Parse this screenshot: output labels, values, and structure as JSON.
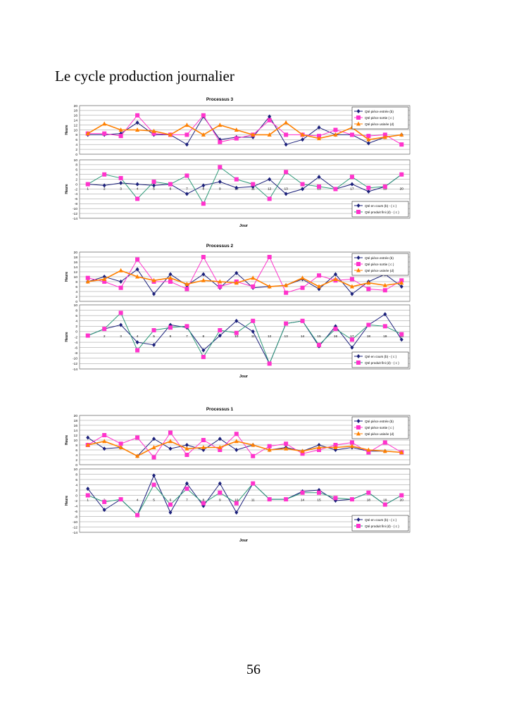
{
  "document": {
    "title": "Le cycle production journalier",
    "page_number": "56"
  },
  "colors": {
    "navy": "#1a1f7a",
    "magenta": "#ff33cc",
    "orange": "#ff8000",
    "teal": "#2e9a78",
    "grid": "#000000"
  },
  "chart_data": [
    {
      "type": "line",
      "title": "Processus 3",
      "top": {
        "ylabel": "Heure",
        "ylim": [
          0,
          20
        ],
        "yticks": [
          0,
          2,
          4,
          6,
          8,
          10,
          12,
          14,
          16,
          18,
          20
        ],
        "x": [
          1,
          2,
          3,
          4,
          5,
          6,
          7,
          8,
          9,
          10,
          11,
          12,
          13,
          14,
          15,
          16,
          17,
          18,
          19,
          20
        ],
        "legend": [
          "Qté pièce entrée (b)",
          "Qté pièce sortie ( c )",
          "Qté pièce usinée (d)"
        ],
        "series": [
          {
            "name": "Qté pièce entrée (b)",
            "values": [
              8,
              8,
              8.5,
              13,
              8,
              8,
              4,
              15.5,
              6,
              7,
              7,
              15.5,
              4,
              6,
              11,
              8,
              8,
              4.5,
              7,
              8
            ]
          },
          {
            "name": "Qté pièce sortie ( c )",
            "values": [
              8.5,
              8.5,
              7.5,
              16,
              8.5,
              8,
              8,
              16,
              5,
              6.5,
              8,
              14,
              8,
              8,
              7.5,
              10,
              8,
              7.5,
              8,
              4
            ]
          },
          {
            "name": "Qté pièce usinée (d)",
            "values": [
              8.5,
              12.5,
              10,
              10,
              9.5,
              8,
              12,
              8,
              12,
              10,
              8,
              8,
              13,
              8,
              6.5,
              8,
              11,
              6,
              7,
              8
            ]
          }
        ]
      },
      "bottom": {
        "ylim": [
          -14,
          10
        ],
        "yticks": [
          -14,
          -12,
          -10,
          -8,
          -6,
          -4,
          -2,
          0,
          2,
          4,
          6,
          8,
          10
        ],
        "xlabel": "Jour",
        "x": [
          1,
          2,
          3,
          4,
          5,
          6,
          7,
          8,
          9,
          10,
          11,
          12,
          13,
          14,
          15,
          16,
          17,
          18,
          19,
          20
        ],
        "legend": [
          "Qté en cours (b) - ( c )",
          "Qté produit fini (d) - ( c )"
        ],
        "series": [
          {
            "name": "Qté en cours (b) - ( c )",
            "values": [
              0,
              -0.5,
              0.5,
              0,
              -0.5,
              0,
              -4,
              -0.5,
              1,
              -1.5,
              -1,
              2,
              -4,
              -2,
              3,
              -2,
              0,
              -3,
              -1,
              4
            ]
          },
          {
            "name": "Qté produit fini (d) - ( c )",
            "values": [
              0,
              4,
              2.5,
              -6,
              1,
              0,
              3.5,
              -8,
              7,
              2,
              0,
              -6,
              5,
              0,
              -1,
              -2,
              3,
              -1.5,
              -1,
              4
            ]
          }
        ]
      }
    },
    {
      "type": "line",
      "title": "Processus 2",
      "top": {
        "ylabel": "Heure",
        "ylim": [
          0,
          20
        ],
        "yticks": [
          0,
          2,
          4,
          6,
          8,
          10,
          12,
          14,
          16,
          18,
          20
        ],
        "x": [
          1,
          2,
          3,
          4,
          5,
          6,
          7,
          8,
          9,
          10,
          11,
          12,
          13,
          14,
          15,
          16,
          17,
          18,
          19,
          20
        ],
        "legend": [
          "Qté pièce entrée (b)",
          "Qté pièce sortie ( c )",
          "Qté pièce usinée (d)"
        ],
        "series": [
          {
            "name": "Qté pièce entrée (b)",
            "values": [
              8,
              10,
              8,
              13,
              3,
              11,
              6.5,
              11,
              5.5,
              11.5,
              5.5,
              6,
              6.5,
              9,
              5,
              11,
              3,
              8,
              11,
              6
            ]
          },
          {
            "name": "Qté pièce sortie ( c )",
            "values": [
              9.5,
              8,
              5.5,
              17,
              8,
              8,
              5,
              18,
              6,
              8,
              6,
              18,
              3.5,
              5.5,
              10.5,
              8.5,
              9,
              5,
              4.5,
              8.5
            ]
          },
          {
            "name": "Qté pièce usinée (d)",
            "values": [
              8,
              9,
              12.5,
              10,
              8.5,
              9.5,
              7,
              8.5,
              8,
              7.5,
              9.5,
              6,
              6.5,
              9.5,
              6,
              9,
              6,
              7.5,
              6.5,
              7.5
            ]
          }
        ]
      },
      "bottom": {
        "ylim": [
          -14,
          10
        ],
        "yticks": [
          -14,
          -12,
          -10,
          -8,
          -6,
          -4,
          -2,
          0,
          2,
          4,
          6,
          8,
          10
        ],
        "xlabel": "Jour",
        "x": [
          1,
          2,
          3,
          4,
          5,
          6,
          7,
          8,
          9,
          10,
          11,
          12,
          13,
          14,
          15,
          16,
          17,
          18,
          19,
          20
        ],
        "legend": [
          "Qté en cours (b) - ( c )",
          "Qté produit fini (d) - ( c )"
        ],
        "series": [
          {
            "name": "Qté en cours (b) - ( c )",
            "values": [
              -1.5,
              1,
              2.5,
              -4,
              -5,
              2.5,
              1.5,
              -7,
              -1.5,
              4,
              0,
              -12,
              3,
              4,
              -5.5,
              2,
              -6,
              2.5,
              6.5,
              -3
            ]
          },
          {
            "name": "Qté produit fini (d) - ( c )",
            "values": [
              -1.5,
              1,
              7,
              -7,
              0.5,
              1.5,
              2,
              -9.5,
              0.5,
              -0.5,
              4,
              -12,
              3,
              4,
              -5,
              1,
              -3,
              2.5,
              2,
              -1
            ]
          }
        ]
      }
    },
    {
      "type": "line",
      "title": "Processus 1",
      "top": {
        "ylabel": "Heure",
        "ylim": [
          0,
          20
        ],
        "yticks": [
          0,
          2,
          4,
          6,
          8,
          10,
          12,
          14,
          16,
          18,
          20
        ],
        "x": [
          1,
          2,
          3,
          4,
          5,
          6,
          7,
          8,
          9,
          10,
          11,
          12,
          13,
          14,
          15,
          16,
          17,
          18,
          19,
          20
        ],
        "legend": [
          "Qté pièce entrée (b)",
          "Qté pièce sortie ( c )",
          "Qté pièce usinée (d)"
        ],
        "series": [
          {
            "name": "Qté pièce entrée (b)",
            "values": [
              11,
              6.5,
              7,
              3.5,
              10.5,
              6.5,
              8,
              6,
              10.5,
              6,
              8,
              6,
              7,
              5.5,
              8,
              6,
              7,
              5.5,
              5.5,
              5
            ]
          },
          {
            "name": "Qté pièce sortie ( c )",
            "values": [
              8,
              12,
              8.5,
              11,
              3,
              13,
              4,
              10,
              6,
              12.5,
              3.5,
              7.5,
              8.5,
              4.5,
              6,
              8,
              9,
              5,
              9,
              5
            ]
          },
          {
            "name": "Qté pièce usinée (d)",
            "values": [
              8,
              9.5,
              7,
              3.5,
              7,
              9.5,
              6.5,
              7,
              7,
              9.5,
              8,
              6,
              6.5,
              5.5,
              7,
              7,
              7.5,
              6,
              5.5,
              5
            ]
          }
        ]
      },
      "bottom": {
        "ylim": [
          -14,
          10
        ],
        "yticks": [
          -14,
          -12,
          -10,
          -8,
          -6,
          -4,
          -2,
          0,
          2,
          4,
          6,
          8,
          10
        ],
        "xlabel": "Jour",
        "x": [
          1,
          2,
          3,
          4,
          5,
          6,
          7,
          8,
          9,
          10,
          11,
          12,
          13,
          14,
          15,
          16,
          17,
          18,
          19,
          20
        ],
        "legend": [
          "Qté en cours (b) - ( c )",
          "Qté produit fini (d) - ( c )"
        ],
        "series": [
          {
            "name": "Qté en cours (b) - ( c )",
            "values": [
              2.5,
              -5.5,
              -1.5,
              -7.5,
              7.5,
              -6.5,
              4.5,
              -4,
              4.5,
              -6.5,
              4.5,
              -1.5,
              -1.5,
              1.5,
              2,
              -2,
              -1.5,
              1,
              -3.5,
              0
            ]
          },
          {
            "name": "Qté produit fini (d) - ( c )",
            "values": [
              0,
              -2.5,
              -1.5,
              -7.5,
              4,
              -3.5,
              2.5,
              -3,
              1,
              -3,
              4.5,
              -1.5,
              -1.5,
              1,
              1,
              -1,
              -1.5,
              1,
              -3.5,
              0
            ]
          }
        ]
      }
    }
  ]
}
